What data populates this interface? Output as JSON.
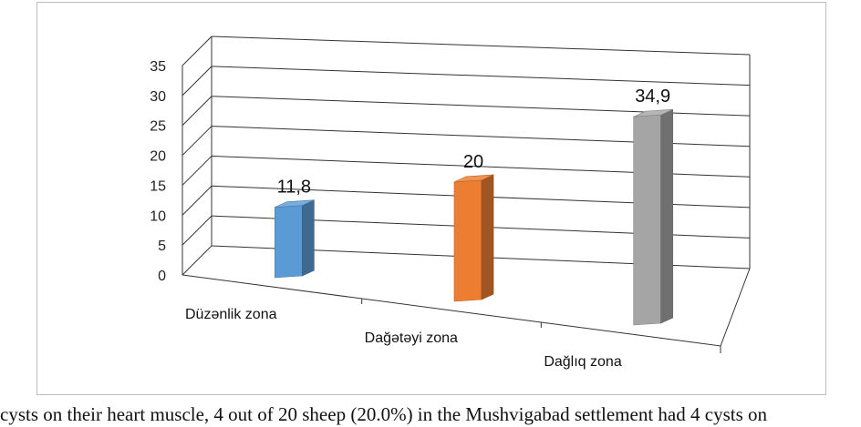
{
  "chart_data": {
    "type": "bar",
    "style": "3d-perspective",
    "title": "",
    "xlabel": "",
    "ylabel": "",
    "categories": [
      "Düzənlik zona",
      "Dağətəyi zona",
      "Dağlıq zona"
    ],
    "values": [
      11.8,
      20,
      34.9
    ],
    "data_labels": [
      "11,8",
      "20",
      "34,9"
    ],
    "colors": [
      "#5b9bd5",
      "#ed7d31",
      "#a5a5a5"
    ],
    "ylim": [
      0,
      35
    ],
    "yticks": [
      0,
      5,
      10,
      15,
      20,
      25,
      30,
      35
    ],
    "ytick_labels": [
      "0",
      "5",
      "10",
      "15",
      "20",
      "25",
      "30",
      "35"
    ],
    "grid": true,
    "legend": "none"
  },
  "caption": "cysts on their heart muscle, 4 out of 20 sheep (20.0%) in the Mushvigabad settlement had 4 cysts on"
}
